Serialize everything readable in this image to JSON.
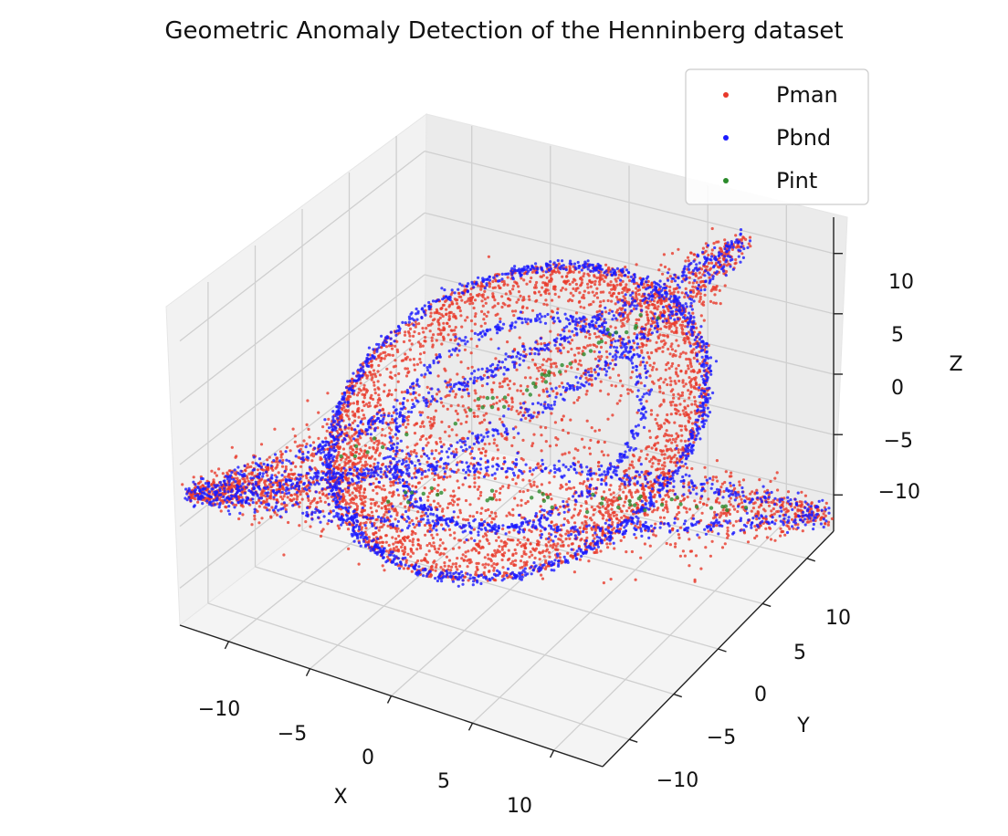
{
  "chart_data": {
    "type": "scatter",
    "projection": "3d",
    "title": "Geometric Anomaly Detection of the Henninberg dataset",
    "xlabel": "X",
    "ylabel": "Y",
    "zlabel": "Z",
    "xlim": [
      -13,
      13
    ],
    "ylim": [
      -13,
      13
    ],
    "zlim": [
      -13,
      13
    ],
    "x_ticks": [
      -10,
      -5,
      0,
      5,
      10
    ],
    "y_ticks": [
      -10,
      -5,
      0,
      5,
      10
    ],
    "z_ticks": [
      -10,
      -5,
      0,
      5,
      10
    ],
    "x_tick_labels": [
      "−10",
      "−5",
      "0",
      "5",
      "10"
    ],
    "y_tick_labels": [
      "−10",
      "−5",
      "0",
      "5",
      "10"
    ],
    "z_tick_labels": [
      "−10",
      "−5",
      "0",
      "5",
      "10"
    ],
    "grid": true,
    "legend": {
      "placement": "top-right",
      "entries": [
        "Pman",
        "Pbnd",
        "Pint"
      ]
    },
    "series": [
      {
        "name": "Pman",
        "color": "#e8392b",
        "role": "manifold interior points, dense across the Henneberg surface and the torus-like outer band"
      },
      {
        "name": "Pbnd",
        "color": "#1a1aff",
        "role": "boundary points concentrated along the rims and the sharp fold edges"
      },
      {
        "name": "Pint",
        "color": "#2a8a2a",
        "role": "sparse points along the self-intersection curves"
      }
    ]
  }
}
